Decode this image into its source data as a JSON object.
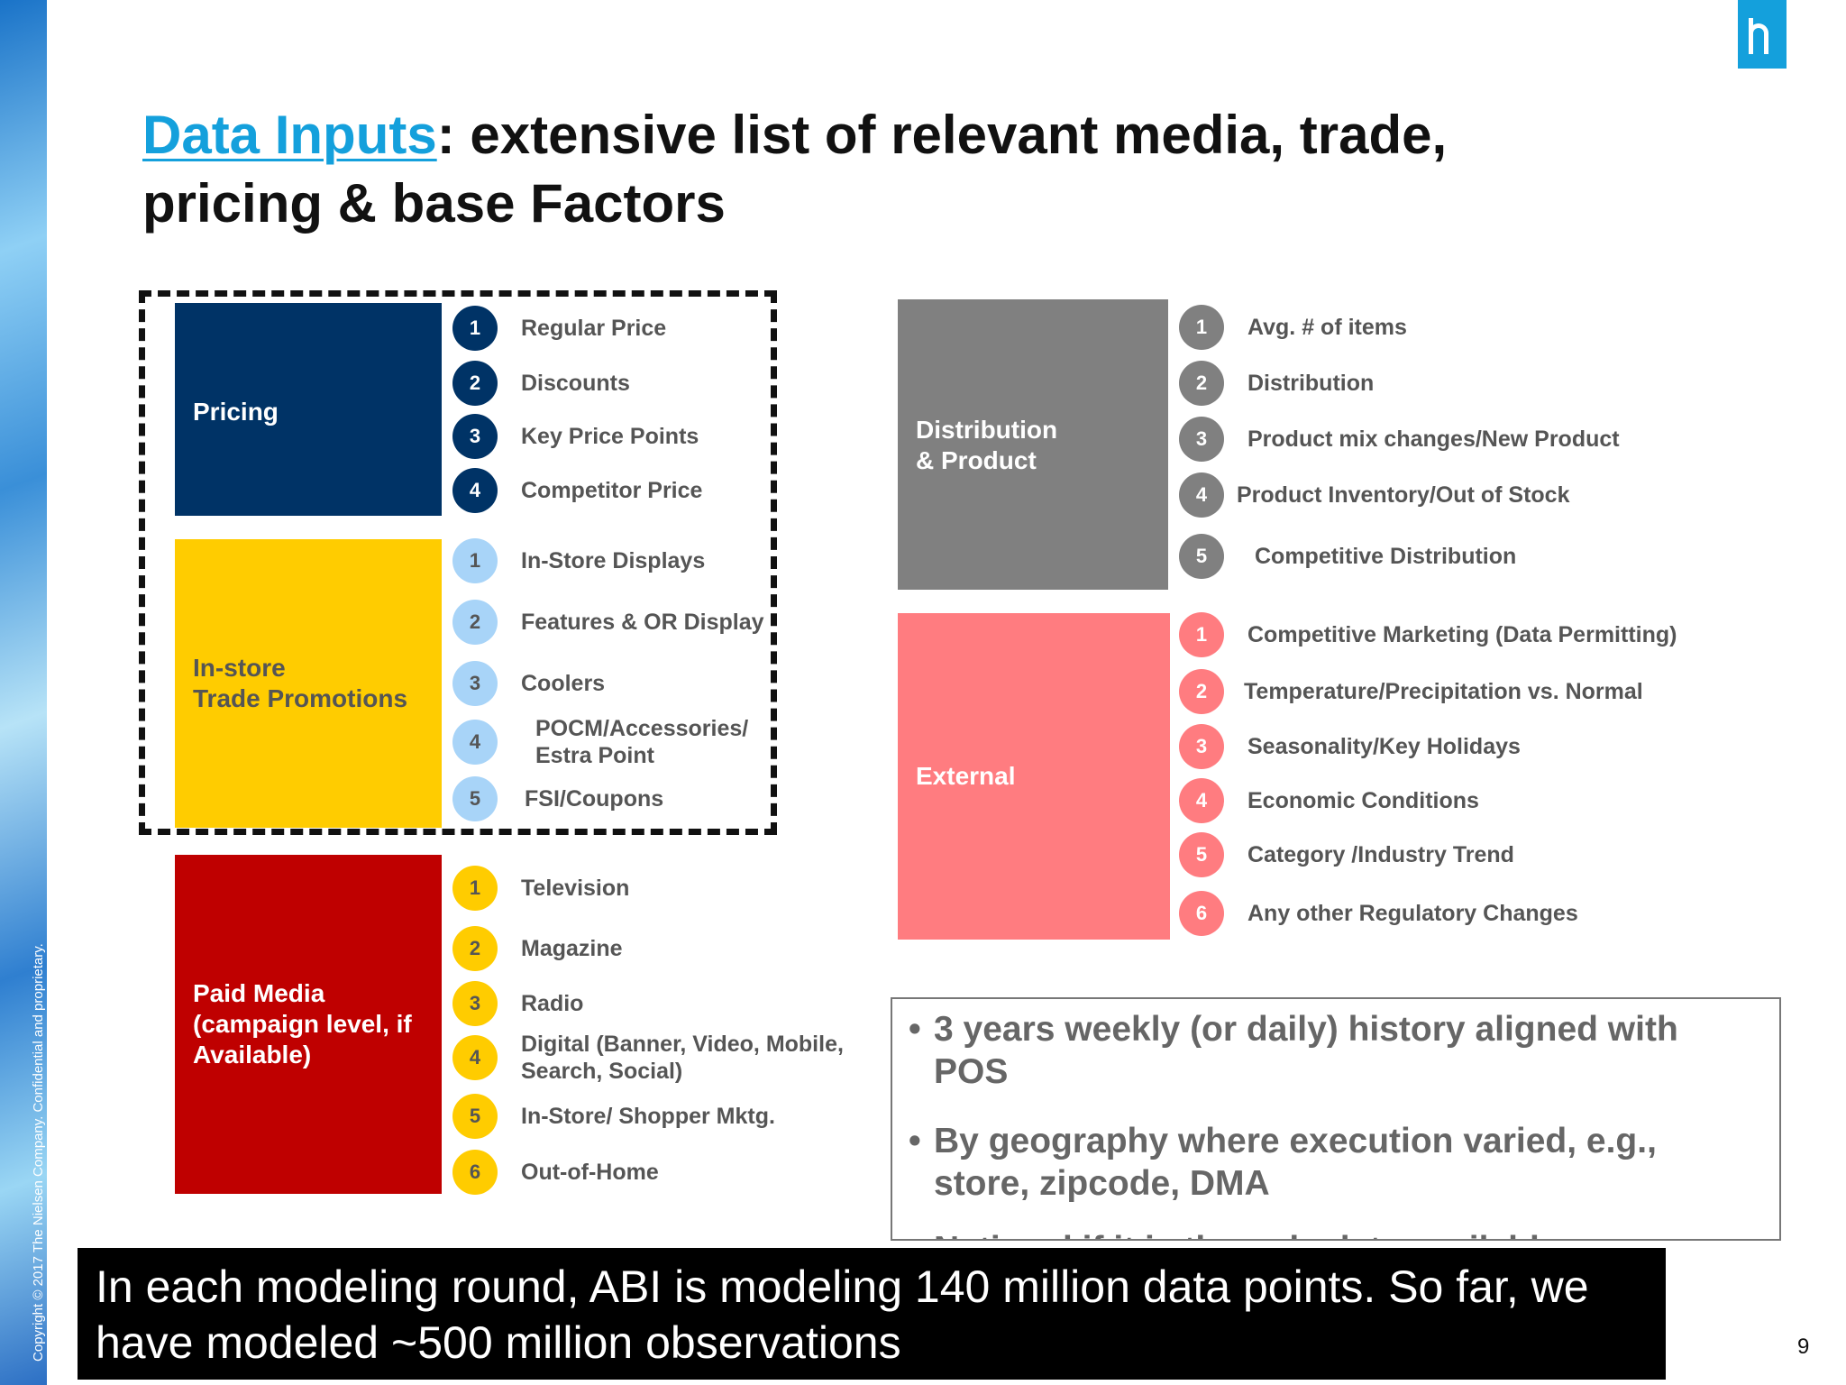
{
  "copyright": "Copyright © 2017 The Nielsen Company. Confidential and proprietary.",
  "title": {
    "highlight": "Data Inputs",
    "rest_line1": ": extensive list of relevant media, trade,",
    "line2": "pricing & base Factors"
  },
  "colors": {
    "pricing": "#003366",
    "instore": "#ffcc00",
    "paidmedia": "#bf0000",
    "distribution": "#808080",
    "external": "#ff7c80",
    "accent": "#14a0dc"
  },
  "categories": {
    "pricing": {
      "label": "Pricing",
      "items": [
        {
          "num": "1",
          "label": "Regular Price"
        },
        {
          "num": "2",
          "label": "Discounts"
        },
        {
          "num": "3",
          "label": "Key Price Points"
        },
        {
          "num": "4",
          "label": "Competitor Price"
        }
      ]
    },
    "instore": {
      "label": "In-store\nTrade Promotions",
      "items": [
        {
          "num": "1",
          "label": "In-Store Displays"
        },
        {
          "num": "2",
          "label": "Features & OR Display"
        },
        {
          "num": "3",
          "label": "Coolers"
        },
        {
          "num": "4",
          "label": "POCM/Accessories/\nEstra Point"
        },
        {
          "num": "5",
          "label": "FSI/Coupons"
        }
      ]
    },
    "paidmedia": {
      "label": "Paid Media\n (campaign level, if\nAvailable)",
      "items": [
        {
          "num": "1",
          "label": "Television"
        },
        {
          "num": "2",
          "label": "Magazine"
        },
        {
          "num": "3",
          "label": "Radio"
        },
        {
          "num": "4",
          "label": "Digital (Banner, Video, Mobile,\n Search, Social)"
        },
        {
          "num": "5",
          "label": "In-Store/ Shopper Mktg."
        },
        {
          "num": "6",
          "label": "Out-of-Home"
        }
      ]
    },
    "distribution": {
      "label": "Distribution\n& Product",
      "items": [
        {
          "num": "1",
          "label": "Avg. # of items"
        },
        {
          "num": "2",
          "label": "Distribution"
        },
        {
          "num": "3",
          "label": "Product mix changes/New Product"
        },
        {
          "num": "4",
          "label": "Product Inventory/Out of Stock"
        },
        {
          "num": "5",
          "label": "Competitive Distribution"
        }
      ]
    },
    "external": {
      "label": "External",
      "items": [
        {
          "num": "1",
          "label": "Competitive Marketing (Data Permitting)"
        },
        {
          "num": "2",
          "label": "Temperature/Precipitation vs. Normal"
        },
        {
          "num": "3",
          "label": "Seasonality/Key Holidays"
        },
        {
          "num": "4",
          "label": "Economic Conditions"
        },
        {
          "num": "5",
          "label": "Category /Industry Trend"
        },
        {
          "num": "6",
          "label": "Any other Regulatory Changes"
        }
      ]
    }
  },
  "bullets": [
    "3 years weekly (or daily) history aligned with POS",
    "By geography where  execution varied, e.g., store, zipcode, DMA",
    "National if it is the only data available"
  ],
  "bullet_dot": "•",
  "banner": "In each modeling round, ABI is modeling 140 million data points. So far, we have modeled ~500 million observations",
  "page_number": "9"
}
